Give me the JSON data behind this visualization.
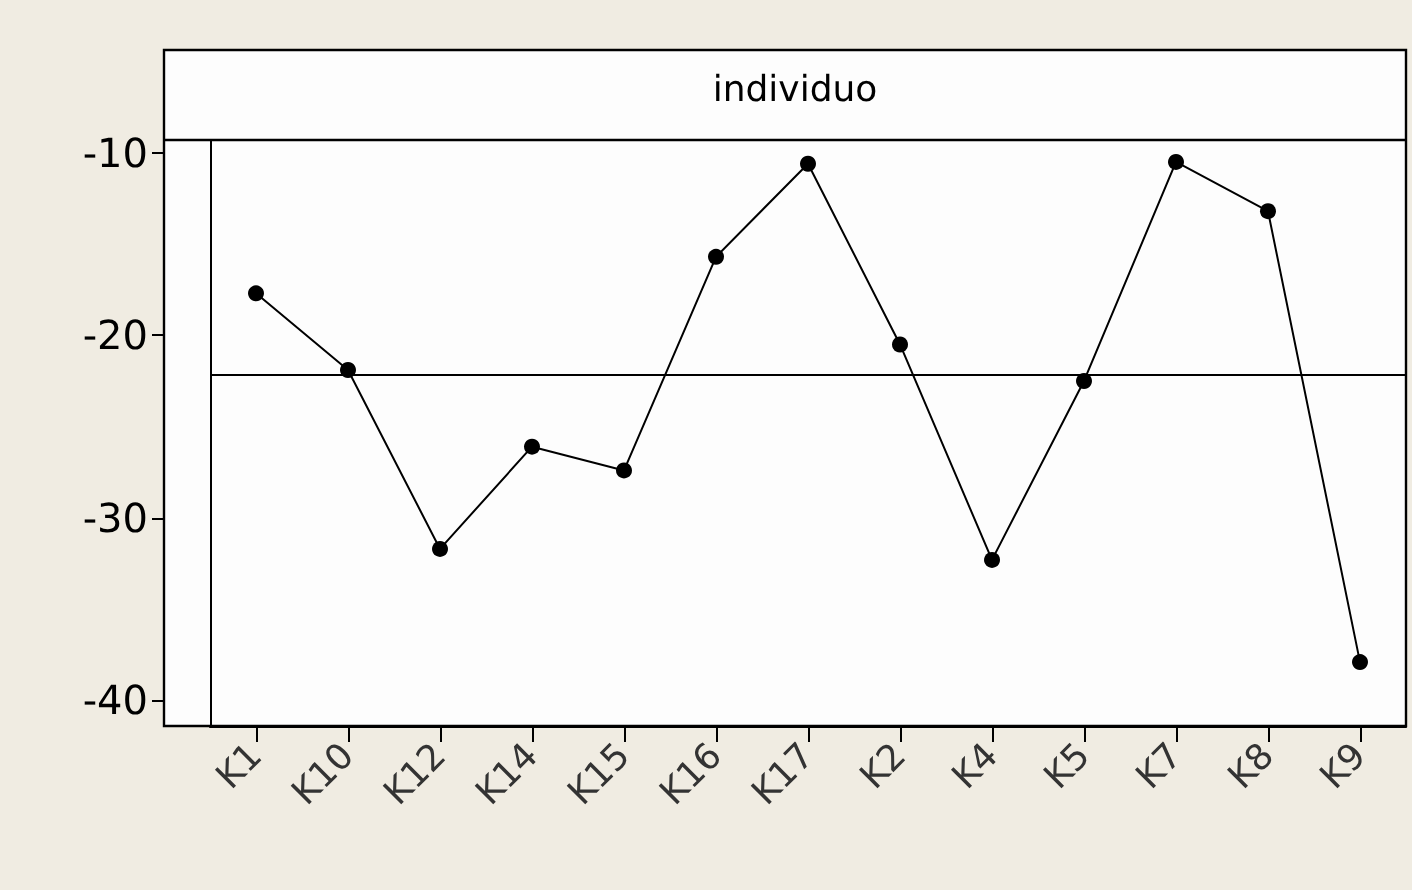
{
  "chart_data": {
    "type": "line",
    "title": "individuo",
    "categories": [
      "K1",
      "K10",
      "K12",
      "K14",
      "K15",
      "K16",
      "K17",
      "K2",
      "K4",
      "K5",
      "K7",
      "K8",
      "K9"
    ],
    "series": [
      {
        "color": "#000000",
        "values": [
          -17.7,
          -21.9,
          -31.7,
          -26.1,
          -27.4,
          -15.7,
          -10.6,
          -20.5,
          -32.3,
          -22.5,
          -10.5,
          -13.2,
          -37.9
        ]
      }
    ],
    "ylim": [
      -41.4,
      -9.3
    ],
    "yticks": [
      -10,
      -20,
      -30,
      -40
    ],
    "ref_lines": [
      {
        "axis": "y",
        "value": -22.2,
        "label": null,
        "color": "#000000"
      }
    ],
    "grid": false,
    "marker": "circle",
    "line_style": "solid"
  }
}
